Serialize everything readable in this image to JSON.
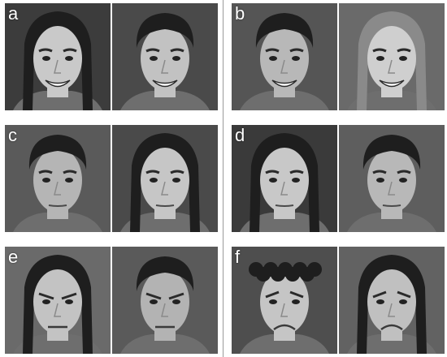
{
  "panels": [
    {
      "label": "a",
      "expression": "happy",
      "faces": [
        {
          "sex": "female",
          "hair": "dark",
          "tone": "#c9c9c9",
          "bg": "#3c3c3c"
        },
        {
          "sex": "male",
          "hair": "dark",
          "tone": "#c2c2c2",
          "bg": "#4a4a4a"
        }
      ]
    },
    {
      "label": "b",
      "expression": "happy",
      "faces": [
        {
          "sex": "male",
          "hair": "dark",
          "tone": "#b8b8b8",
          "bg": "#555555"
        },
        {
          "sex": "female",
          "hair": "light",
          "tone": "#cfcfcf",
          "bg": "#6a6a6a"
        }
      ]
    },
    {
      "label": "c",
      "expression": "neutral",
      "faces": [
        {
          "sex": "male",
          "hair": "dark",
          "tone": "#b5b5b5",
          "bg": "#5a5a5a"
        },
        {
          "sex": "female",
          "hair": "dark",
          "tone": "#c6c6c6",
          "bg": "#4a4a4a"
        }
      ]
    },
    {
      "label": "d",
      "expression": "neutral",
      "faces": [
        {
          "sex": "female",
          "hair": "dark",
          "tone": "#c8c8c8",
          "bg": "#3a3a3a"
        },
        {
          "sex": "male",
          "hair": "dark",
          "tone": "#b8b8b8",
          "bg": "#5e5e5e"
        }
      ]
    },
    {
      "label": "e",
      "expression": "angry",
      "faces": [
        {
          "sex": "female",
          "hair": "dark",
          "tone": "#c3c3c3",
          "bg": "#6a6a6a"
        },
        {
          "sex": "male",
          "hair": "dark",
          "tone": "#b3b3b3",
          "bg": "#5a5a5a"
        }
      ]
    },
    {
      "label": "f",
      "expression": "sad",
      "faces": [
        {
          "sex": "male",
          "hair": "curly",
          "tone": "#c5c5c5",
          "bg": "#4e4e4e"
        },
        {
          "sex": "female",
          "hair": "dark",
          "tone": "#c0c0c0",
          "bg": "#626262"
        }
      ]
    }
  ]
}
